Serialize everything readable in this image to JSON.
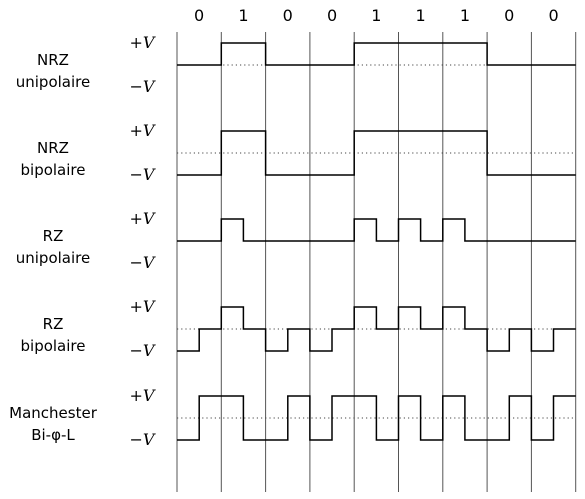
{
  "bits": [
    "0",
    "1",
    "0",
    "0",
    "1",
    "1",
    "1",
    "0",
    "0"
  ],
  "level_labels": {
    "pos": "+V",
    "neg": "−V"
  },
  "encodings": [
    {
      "id": "nrz-unipolaire",
      "label_lines": [
        "NRZ",
        "unipolaire"
      ],
      "zero_line": "dotted"
    },
    {
      "id": "nrz-bipolaire",
      "label_lines": [
        "NRZ",
        "bipolaire"
      ],
      "zero_line": "dotted"
    },
    {
      "id": "rz-unipolaire",
      "label_lines": [
        "RZ",
        "unipolaire"
      ],
      "zero_line": "none"
    },
    {
      "id": "rz-bipolaire",
      "label_lines": [
        "RZ",
        "bipolaire"
      ],
      "zero_line": "dotted"
    },
    {
      "id": "manchester",
      "label_lines": [
        "Manchester",
        "Bi-φ-L"
      ],
      "zero_line": "dotted"
    }
  ],
  "colors": {
    "ink": "#000000",
    "grid": "#555555",
    "dots": "#444444"
  }
}
